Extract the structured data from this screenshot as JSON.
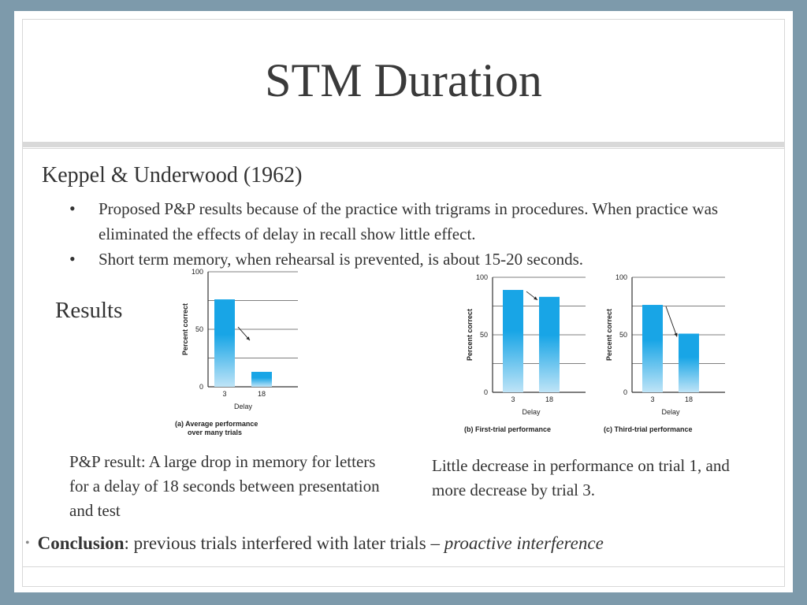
{
  "slide": {
    "title": "STM Duration",
    "subheading": "Keppel & Underwood (1962)",
    "bullets": [
      "Proposed P&P results because of the practice with trigrams in procedures. When practice was eliminated the effects of delay in recall show little effect.",
      "Short term memory, when rehearsal is prevented, is about 15-20 seconds."
    ],
    "bullet_symbol": "•",
    "results_label": "Results",
    "caption_left": "P&P result: A large drop in memory for letters for a delay of 18 seconds between presentation and test",
    "caption_right": "Little decrease in performance on trial 1, and more decrease by trial 3.",
    "conclusion": {
      "bullet": "•",
      "bold": "Conclusion",
      "text": ": previous trials interfered with later trials – ",
      "italic": "proactive interference"
    }
  },
  "chart_data": [
    {
      "type": "bar",
      "title": "(a) Average performance over many trials",
      "title_lines": [
        "(a) Average performance",
        "over many trials"
      ],
      "categories": [
        "3",
        "18"
      ],
      "values": [
        76,
        13
      ],
      "xlabel": "Delay",
      "ylabel": "Percent correct",
      "ylim": [
        0,
        100
      ],
      "yticks": [
        "0",
        "50",
        "100"
      ],
      "grid": true,
      "bar_color_top": "#18a5e6",
      "bar_color_bottom": "#bfe4f7"
    },
    {
      "type": "bar",
      "title": "(b) First-trial performance",
      "categories": [
        "3",
        "18"
      ],
      "values": [
        89,
        83
      ],
      "xlabel": "Delay",
      "ylabel": "Percent correct",
      "ylim": [
        0,
        100
      ],
      "yticks": [
        "0",
        "50",
        "100"
      ],
      "grid": true,
      "bar_color_top": "#18a5e6",
      "bar_color_bottom": "#bfe4f7"
    },
    {
      "type": "bar",
      "title": "(c) Third-trial performance",
      "categories": [
        "3",
        "18"
      ],
      "values": [
        76,
        51
      ],
      "xlabel": "Delay",
      "ylabel": "Percent correct",
      "ylim": [
        0,
        100
      ],
      "yticks": [
        "0",
        "50",
        "100"
      ],
      "grid": true,
      "bar_color_top": "#18a5e6",
      "bar_color_bottom": "#bfe4f7"
    }
  ]
}
